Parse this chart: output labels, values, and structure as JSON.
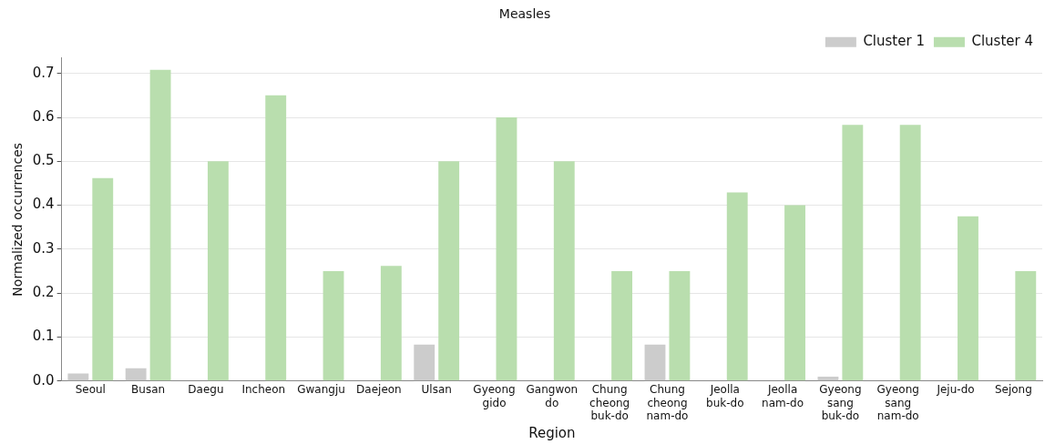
{
  "chart_data": {
    "type": "bar",
    "title": "Measles",
    "xlabel": "Region",
    "ylabel": "Normalized occurrences",
    "categories": [
      "Seoul",
      "Busan",
      "Daegu",
      "Incheon",
      "Gwangju",
      "Daejeon",
      "Ulsan",
      "Gyeong\ngido",
      "Gangwon\ndo",
      "Chung\ncheong\nbuk-do",
      "Chung\ncheong\nnam-do",
      "Jeolla\nbuk-do",
      "Jeolla\nnam-do",
      "Gyeong\nsang\nbuk-do",
      "Gyeong\nsang\nnam-do",
      "Jeju-do",
      "Sejong"
    ],
    "series": [
      {
        "name": "Cluster 1",
        "color": "#cccccc",
        "values": [
          0.017,
          0.029,
          0,
          0,
          0,
          null,
          0.083,
          null,
          0,
          0,
          0.083,
          0,
          0,
          0.01,
          0,
          0,
          0
        ]
      },
      {
        "name": "Cluster 4",
        "color": "#b9deae",
        "values": [
          0.462,
          0.708,
          0.5,
          0.65,
          0.25,
          0.262,
          0.5,
          0.6,
          0.5,
          0.25,
          0.25,
          0.429,
          0.4,
          0.583,
          0.583,
          0.375,
          0.25
        ]
      }
    ],
    "ylim": [
      0,
      0.735
    ],
    "yticks": [
      {
        "value": 0,
        "label": "0.0"
      },
      {
        "value": 0.1,
        "label": "0.1"
      },
      {
        "value": 0.2,
        "label": "0.2"
      },
      {
        "value": 0.3,
        "label": "0.3"
      },
      {
        "value": 0.4,
        "label": "0.4"
      },
      {
        "value": 0.5,
        "label": "0.5"
      },
      {
        "value": 0.6,
        "label": "0.6"
      },
      {
        "value": 0.7,
        "label": "0.7"
      }
    ],
    "grid": "y",
    "legend": "top right"
  }
}
